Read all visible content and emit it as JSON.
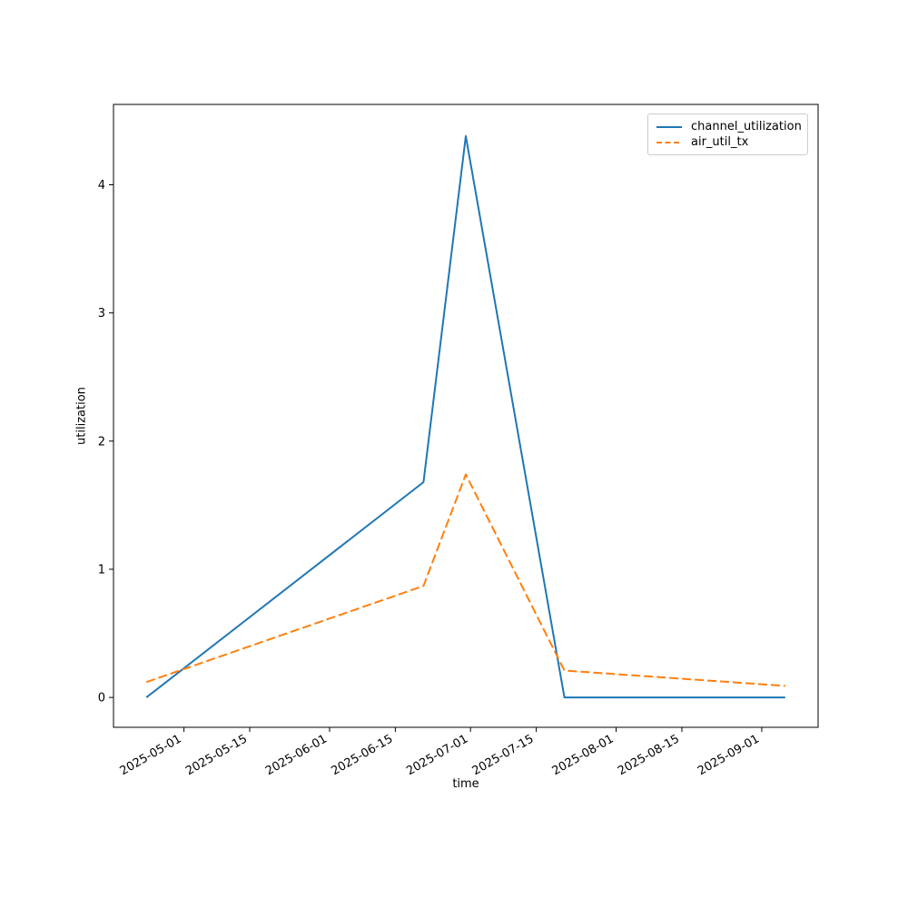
{
  "figure": {
    "background": "#ffffff"
  },
  "chart_data": {
    "type": "line",
    "title": "",
    "xlabel": "time",
    "ylabel": "utilization",
    "grid": false,
    "legend_position": "upper right",
    "x_tick_labels": [
      "2025-05-01",
      "2025-05-15",
      "2025-06-01",
      "2025-06-15",
      "2025-07-01",
      "2025-07-15",
      "2025-08-01",
      "2025-08-15",
      "2025-09-01"
    ],
    "y_ticks": [
      0,
      1,
      2,
      3,
      4
    ],
    "xlim": [
      "2025-04-16",
      "2025-09-13"
    ],
    "ylim": [
      -0.233,
      4.627
    ],
    "series": [
      {
        "name": "channel_utilization",
        "color": "#1f77b4",
        "style": "solid",
        "x": [
          "2025-04-23",
          "2025-06-21",
          "2025-06-30",
          "2025-07-21",
          "2025-09-06"
        ],
        "y": [
          0.0,
          1.68,
          4.38,
          0.0,
          0.0
        ]
      },
      {
        "name": "air_util_tx",
        "color": "#ff7f0e",
        "style": "dashed",
        "x": [
          "2025-04-23",
          "2025-06-21",
          "2025-06-30",
          "2025-07-21",
          "2025-09-06"
        ],
        "y": [
          0.12,
          0.87,
          1.74,
          0.21,
          0.09
        ]
      }
    ]
  }
}
